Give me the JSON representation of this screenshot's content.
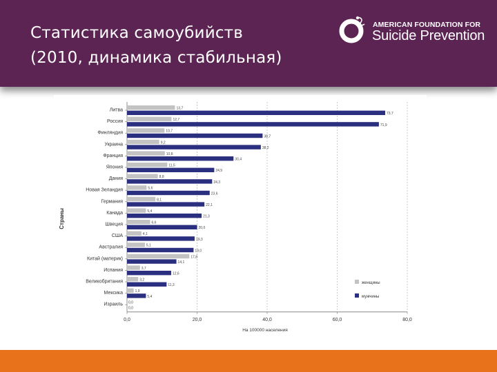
{
  "slide": {
    "title_line1": "Статистика самоубийств",
    "title_line2": "(2010, динамика стабильная)"
  },
  "logo": {
    "line1": "AMERICAN FOUNDATION FOR",
    "line2": "Suicide Prevention"
  },
  "colors": {
    "header_bg": "#5c2453",
    "footer_bg": "#e8721c",
    "women": "#c3c3c3",
    "men": "#2b2f7f"
  },
  "chart_data": {
    "type": "bar",
    "orientation": "horizontal",
    "categories": [
      "Литва",
      "Россия",
      "Финляндия",
      "Украина",
      "Франция",
      "Япония",
      "Дания",
      "Новая Зеландия",
      "Германия",
      "Канада",
      "Швеция",
      "США",
      "Австралия",
      "Китай (материк)",
      "Испания",
      "Великобритания",
      "Мексика",
      "Израиль"
    ],
    "series": [
      {
        "name": "женщины",
        "color": "#c3c3c3",
        "values": [
          13.7,
          12.7,
          10.7,
          9.2,
          10.8,
          11.5,
          8.8,
          5.6,
          8.1,
          5.4,
          6.6,
          4.1,
          5.1,
          17.8,
          3.7,
          3.2,
          1.9,
          0.0
        ]
      },
      {
        "name": "мужчины",
        "color": "#2b2f7f",
        "values": [
          73.7,
          71.9,
          38.7,
          38.2,
          30.4,
          24.9,
          24.3,
          23.6,
          22.1,
          21.3,
          20.0,
          19.3,
          19.0,
          14.1,
          12.6,
          11.3,
          5.4,
          0.0
        ]
      }
    ],
    "women_labels": [
      "13,7",
      "12,7",
      "10,7",
      "9,2",
      "10,8",
      "11,5",
      "8,8",
      "5,6",
      "8,1",
      "5,4",
      "6,6",
      "4,1",
      "5,1",
      "17,8",
      "3,7",
      "3,2",
      "1,9",
      "0,0"
    ],
    "men_labels": [
      "73,7",
      "71,9",
      "38,7",
      "38,2",
      "30,4",
      "24,9",
      "24,3",
      "23,6",
      "22,1",
      "21,3",
      "20,0",
      "19,3",
      "19,0",
      "14,1",
      "12,6",
      "11,3",
      "5,4",
      "0,0"
    ],
    "ticks": [
      0,
      20,
      40,
      60,
      80
    ],
    "tick_labels": [
      "0,0",
      "20,0",
      "40,0",
      "60,0",
      "80,0"
    ],
    "xlim": [
      0,
      80
    ],
    "xlabel": "На 100000 населения",
    "ylabel": "Страны",
    "legend": {
      "position": "bottom-right",
      "entries": [
        "женщины",
        "мужчины"
      ]
    },
    "grid": "vertical-dashed"
  }
}
